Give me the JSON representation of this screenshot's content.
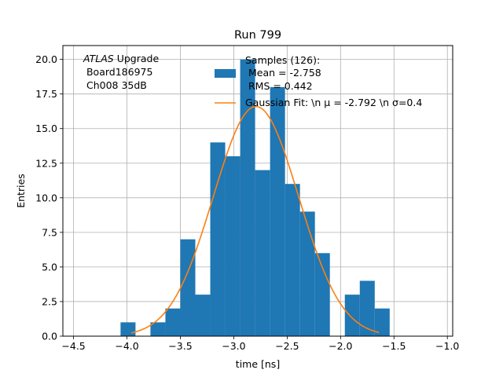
{
  "chart_data": {
    "type": "bar",
    "title": "Run 799",
    "xlabel": "time [ns]",
    "ylabel": "Entries",
    "xlim": [
      -4.6,
      -0.95
    ],
    "ylim": [
      0,
      21
    ],
    "grid": true,
    "xticks": [
      -4.5,
      -4.0,
      -3.5,
      -3.0,
      -2.5,
      -2.0,
      -1.5,
      -1.0
    ],
    "xtick_labels": [
      "−4.5",
      "−4.0",
      "−3.5",
      "−3.0",
      "−2.5",
      "−2.0",
      "−1.5",
      "−1.0"
    ],
    "yticks": [
      0,
      2.5,
      5,
      7.5,
      10,
      12.5,
      15,
      17.5,
      20
    ],
    "ytick_labels": [
      "0.0",
      "2.5",
      "5.0",
      "7.5",
      "10.0",
      "12.5",
      "15.0",
      "17.5",
      "20.0"
    ],
    "histogram": {
      "bin_edges": [
        -4.06,
        -3.92,
        -3.78,
        -3.64,
        -3.5,
        -3.36,
        -3.22,
        -3.08,
        -2.94,
        -2.8,
        -2.66,
        -2.52,
        -2.38,
        -2.24,
        -2.1,
        -1.96,
        -1.82,
        -1.68,
        -1.54
      ],
      "counts": [
        1,
        0,
        1,
        2,
        7,
        3,
        14,
        13,
        20,
        12,
        18,
        11,
        9,
        6,
        0,
        3,
        4,
        2
      ],
      "color": "#1f77b4"
    },
    "fit": {
      "type": "gaussian",
      "mu": -2.792,
      "sigma": 0.4,
      "amplitude": 16.6,
      "x_range": [
        -3.96,
        -1.64
      ],
      "color": "#ff7f0e"
    },
    "legend": {
      "placement": "upper center",
      "entries": [
        {
          "lines": [
            "Samples (126):",
            " Mean = -2.758",
            " RMS = 0.442"
          ]
        },
        {
          "lines": [
            "Gaussian Fit: \\n μ = -2.792 \\n σ=0.4"
          ]
        }
      ]
    },
    "annotation": {
      "italic": "ATLAS",
      "after_italic": " Upgrade",
      "line2": " Board186975",
      "line3": " Ch008 35dB"
    }
  }
}
